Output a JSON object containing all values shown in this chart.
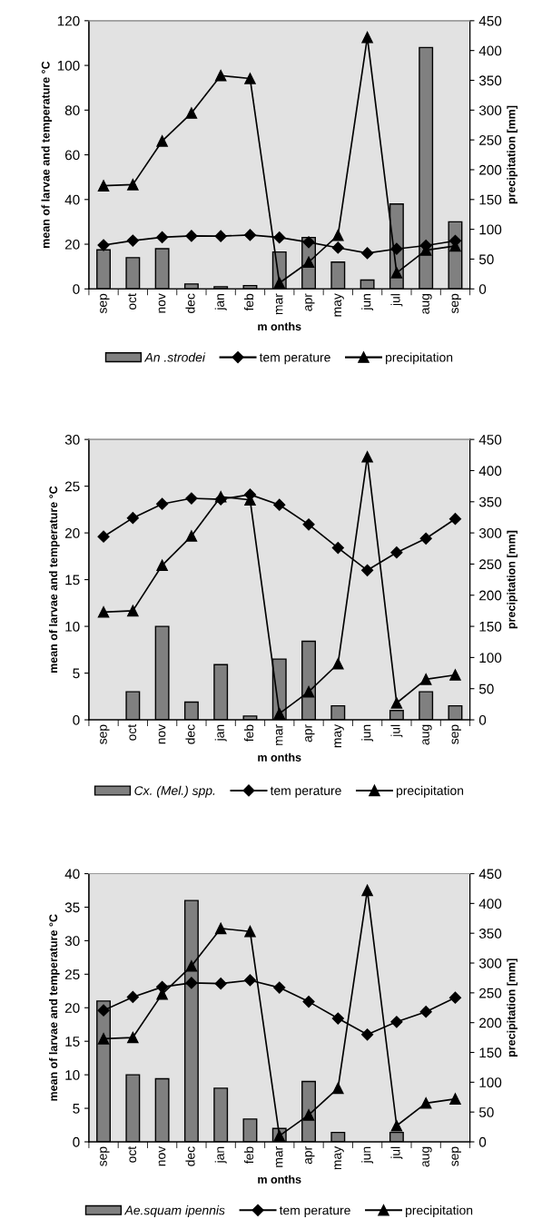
{
  "chart_data": [
    {
      "type": "bar",
      "categories": [
        "sep",
        "oct",
        "nov",
        "dec",
        "jan",
        "feb",
        "mar",
        "apr",
        "may",
        "jun",
        "jul",
        "aug",
        "sep"
      ],
      "xlabel": "m onths",
      "ylabel": "mean of larvae and temperature °C",
      "y2label": "precipitation [mm]",
      "ylim": [
        0,
        120
      ],
      "yticks": [
        0,
        20,
        40,
        60,
        80,
        100,
        120
      ],
      "y2lim": [
        0,
        450
      ],
      "y2ticks": [
        0,
        50,
        100,
        150,
        200,
        250,
        300,
        350,
        400,
        450
      ],
      "legend": "bottom",
      "grid": false,
      "series": [
        {
          "name": "An .strodei",
          "color": "#808080",
          "values": [
            17.5,
            14,
            18,
            2.2,
            1,
            1.5,
            16.5,
            23,
            12,
            4,
            38,
            108,
            30
          ]
        },
        {
          "name": "tem perature",
          "type": "line",
          "marker": "diamond",
          "color": "#000000",
          "values": [
            19.6,
            21.6,
            23.1,
            23.7,
            23.6,
            24.1,
            23.0,
            20.9,
            18.4,
            16.0,
            17.9,
            19.4,
            21.5
          ]
        },
        {
          "name": "precipitation",
          "type": "line",
          "axis": "y2",
          "marker": "triangle",
          "color": "#000000",
          "values": [
            173,
            175,
            248,
            295,
            358,
            353,
            10,
            45,
            90,
            422,
            27,
            65,
            72
          ]
        }
      ]
    },
    {
      "type": "bar",
      "categories": [
        "sep",
        "oct",
        "nov",
        "dec",
        "jan",
        "feb",
        "mar",
        "apr",
        "may",
        "jun",
        "jul",
        "aug",
        "sep"
      ],
      "xlabel": "m onths",
      "ylabel": "mean of larvae and temperature °C",
      "y2label": "precipitation [mm]",
      "ylim": [
        0,
        30
      ],
      "yticks": [
        0,
        5,
        10,
        15,
        20,
        25,
        30
      ],
      "y2lim": [
        0,
        450
      ],
      "y2ticks": [
        0,
        50,
        100,
        150,
        200,
        250,
        300,
        350,
        400,
        450
      ],
      "legend": "bottom",
      "grid": false,
      "series": [
        {
          "name": "Cx. (Mel.) spp.",
          "color": "#808080",
          "values": [
            null,
            3,
            10,
            1.9,
            5.9,
            0.4,
            6.5,
            8.4,
            1.5,
            null,
            1,
            3,
            1.5
          ]
        },
        {
          "name": "tem perature",
          "type": "line",
          "marker": "diamond",
          "color": "#000000",
          "values": [
            19.6,
            21.6,
            23.1,
            23.7,
            23.6,
            24.1,
            23.0,
            20.9,
            18.4,
            16.0,
            17.9,
            19.4,
            21.5
          ]
        },
        {
          "name": "precipitation",
          "type": "line",
          "axis": "y2",
          "marker": "triangle",
          "color": "#000000",
          "values": [
            173,
            175,
            248,
            295,
            358,
            353,
            10,
            45,
            90,
            422,
            27,
            65,
            72
          ]
        }
      ]
    },
    {
      "type": "bar",
      "categories": [
        "sep",
        "oct",
        "nov",
        "dec",
        "jan",
        "feb",
        "mar",
        "apr",
        "may",
        "jun",
        "jul",
        "aug",
        "sep"
      ],
      "xlabel": "m onths",
      "ylabel": "mean of larvae and temperature °C",
      "y2label": "precipitation [mm]",
      "ylim": [
        0,
        40
      ],
      "yticks": [
        0,
        5,
        10,
        15,
        20,
        25,
        30,
        35,
        40
      ],
      "y2lim": [
        0,
        450
      ],
      "y2ticks": [
        0,
        50,
        100,
        150,
        200,
        250,
        300,
        350,
        400,
        450
      ],
      "legend": "bottom",
      "grid": false,
      "series": [
        {
          "name": "Ae.squam ipennis",
          "color": "#808080",
          "values": [
            21,
            10,
            9.4,
            36,
            8,
            3.4,
            2,
            9,
            1.4,
            null,
            1.4,
            null,
            null
          ]
        },
        {
          "name": "tem perature",
          "type": "line",
          "marker": "diamond",
          "color": "#000000",
          "values": [
            19.6,
            21.6,
            23.1,
            23.7,
            23.6,
            24.1,
            23.0,
            20.9,
            18.4,
            16.0,
            17.9,
            19.4,
            21.5
          ]
        },
        {
          "name": "precipitation",
          "type": "line",
          "axis": "y2",
          "marker": "triangle",
          "color": "#000000",
          "values": [
            173,
            175,
            248,
            295,
            358,
            353,
            10,
            45,
            90,
            422,
            27,
            65,
            72
          ]
        }
      ]
    }
  ]
}
